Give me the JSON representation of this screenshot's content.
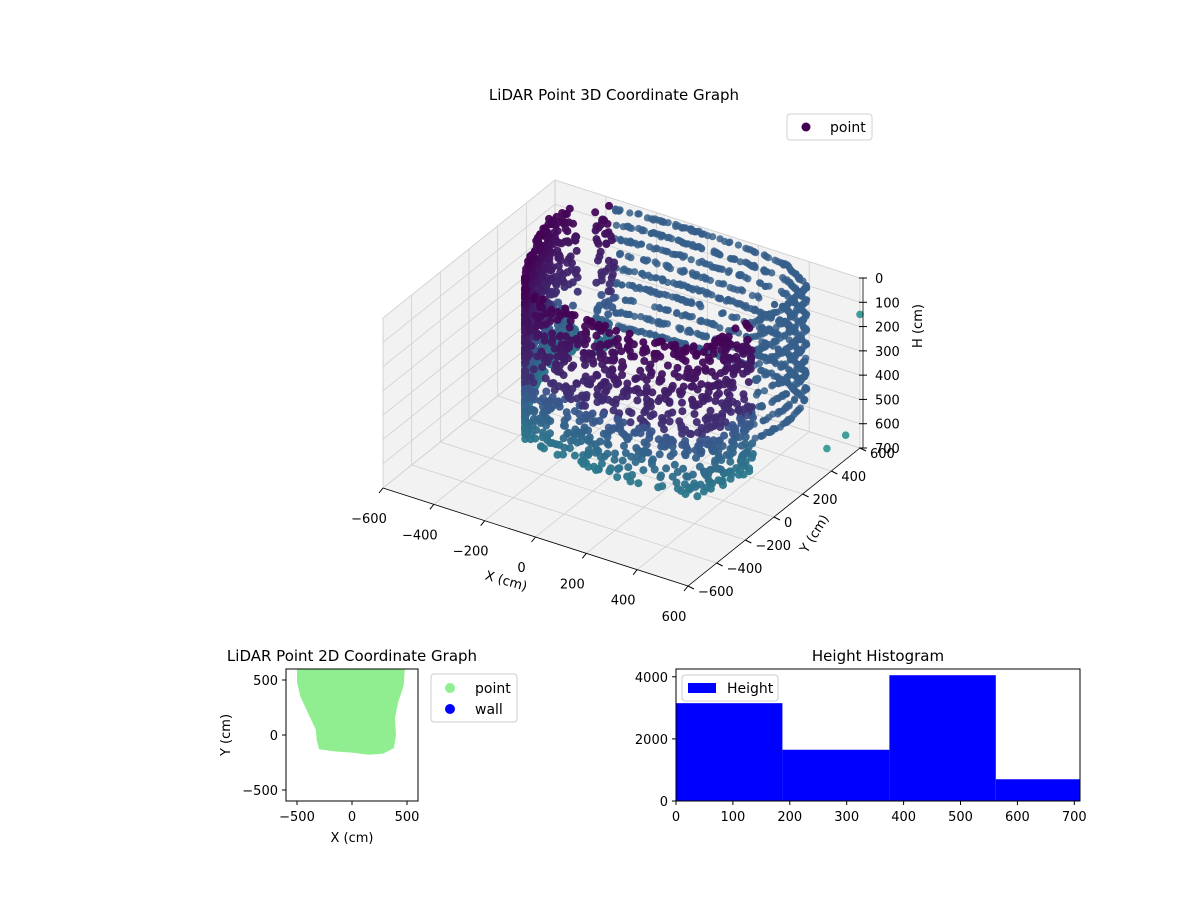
{
  "colors": {
    "point_2d": "#90ee90",
    "wall": "#0000ff",
    "histogram": "#0000ff",
    "cloud_top": "#440154",
    "cloud_mid": "#3b528b",
    "cloud_low": "#21918c",
    "pane": "#f2f2f2",
    "grid": "#cfcfcf"
  },
  "chart_data": [
    {
      "type": "scatter",
      "projection": "3d",
      "title": "LiDAR Point 3D Coordinate Graph",
      "xlabel": "X (cm)",
      "ylabel": "Y (cm)",
      "zlabel": "H (cm)",
      "xlim": [
        -600,
        600
      ],
      "ylim": [
        -600,
        600
      ],
      "zlim": [
        0,
        700
      ],
      "zaxis_inverted": true,
      "x_ticks": [
        "−600",
        "−400",
        "−200",
        "0",
        "200",
        "400",
        "600"
      ],
      "y_ticks": [
        "−600",
        "−400",
        "−200",
        "0",
        "200",
        "400",
        "600"
      ],
      "z_ticks": [
        "0",
        "100",
        "200",
        "300",
        "400",
        "500",
        "600",
        "700"
      ],
      "colormap": "viridis",
      "grid": true,
      "legend": {
        "placement": "upper right",
        "entries": [
          "point"
        ]
      },
      "series": [
        {
          "name": "point",
          "description_shape": "wall-like point cloud (room boundary), ~9700 points",
          "x_range": [
            -500,
            480
          ],
          "y_range": [
            -170,
            600
          ],
          "h_range": [
            0,
            710
          ],
          "outliers": [
            {
              "x": 600,
              "y": 600,
              "h": 150
            },
            {
              "x": 600,
              "y": 500,
              "h": 600
            },
            {
              "x": 560,
              "y": 440,
              "h": 640
            }
          ]
        }
      ]
    },
    {
      "type": "scatter",
      "title": "LiDAR Point 2D Coordinate Graph",
      "xlabel": "X (cm)",
      "ylabel": "Y (cm)",
      "xlim": [
        -600,
        600
      ],
      "ylim": [
        -600,
        600
      ],
      "x_ticks": [
        "−500",
        "0",
        "500"
      ],
      "y_ticks": [
        "−500",
        "0",
        "500"
      ],
      "legend": {
        "placement": "outside right",
        "entries": [
          "point",
          "wall"
        ]
      },
      "series": [
        {
          "name": "point",
          "outline": [
            [
              -500,
              600
            ],
            [
              480,
              600
            ],
            [
              470,
              450
            ],
            [
              420,
              300
            ],
            [
              390,
              150
            ],
            [
              400,
              0
            ],
            [
              380,
              -120
            ],
            [
              280,
              -170
            ],
            [
              150,
              -180
            ],
            [
              0,
              -160
            ],
            [
              -150,
              -150
            ],
            [
              -300,
              -130
            ],
            [
              -320,
              -50
            ],
            [
              -330,
              50
            ],
            [
              -400,
              200
            ],
            [
              -470,
              350
            ],
            [
              -500,
              480
            ]
          ]
        },
        {
          "name": "wall",
          "points": []
        }
      ]
    },
    {
      "type": "bar",
      "subtype": "histogram",
      "title": "Height Histogram",
      "xlim": [
        0,
        710
      ],
      "ylim": [
        0,
        4250
      ],
      "x_ticks": [
        "0",
        "100",
        "200",
        "300",
        "400",
        "500",
        "600",
        "700"
      ],
      "y_ticks": [
        "0",
        "2000",
        "4000"
      ],
      "legend": {
        "placement": "upper left",
        "entries": [
          "Height"
        ]
      },
      "series": [
        {
          "name": "Height",
          "bin_edges": [
            0,
            187,
            375,
            562,
            750
          ],
          "values": [
            3150,
            1650,
            4050,
            700
          ]
        }
      ]
    }
  ]
}
